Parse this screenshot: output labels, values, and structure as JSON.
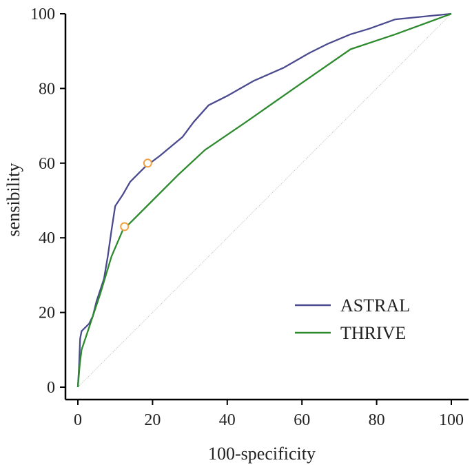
{
  "chart_data": {
    "type": "line",
    "title": "",
    "xlabel": "100-specificity",
    "ylabel": "sensibility",
    "xlim": [
      0,
      100
    ],
    "ylim": [
      0,
      100
    ],
    "xticks": [
      "0",
      "20",
      "40",
      "60",
      "80",
      "100"
    ],
    "yticks": [
      "0",
      "20",
      "40",
      "60",
      "80",
      "100"
    ],
    "grid": false,
    "legend_position": "bottom-right",
    "reference_line": {
      "x": [
        0,
        100
      ],
      "y": [
        0,
        100
      ],
      "color": "#c8c8c8"
    },
    "series": [
      {
        "name": "ASTRAL",
        "color": "#4a4a8e",
        "x": [
          0,
          0.3,
          0.6,
          1,
          2,
          3,
          4,
          5,
          6,
          7,
          8,
          9,
          10,
          12,
          14,
          18,
          22,
          28,
          31,
          35,
          40,
          47,
          55,
          62,
          67,
          73,
          78,
          85,
          100
        ],
        "y": [
          0,
          5,
          13,
          15,
          16,
          17,
          19,
          23,
          26,
          29,
          35,
          42,
          48.5,
          51.5,
          55,
          59,
          62,
          67,
          71,
          75.5,
          78,
          82,
          85.5,
          89.5,
          92,
          94.5,
          96,
          98.5,
          100
        ],
        "marker": {
          "x": 18.7,
          "y": 60,
          "color": "#f0a040"
        }
      },
      {
        "name": "THRIVE",
        "color": "#2e8a2e",
        "x": [
          0,
          0.5,
          1,
          3,
          6,
          9,
          12,
          13,
          20,
          27,
          34,
          45,
          60,
          73,
          85,
          100
        ],
        "y": [
          0,
          6,
          10,
          16,
          25,
          35,
          42,
          43,
          50,
          57,
          63.5,
          71,
          81.5,
          90.5,
          94.5,
          100
        ],
        "marker": {
          "x": 12.5,
          "y": 43,
          "color": "#f0a040"
        }
      }
    ]
  }
}
